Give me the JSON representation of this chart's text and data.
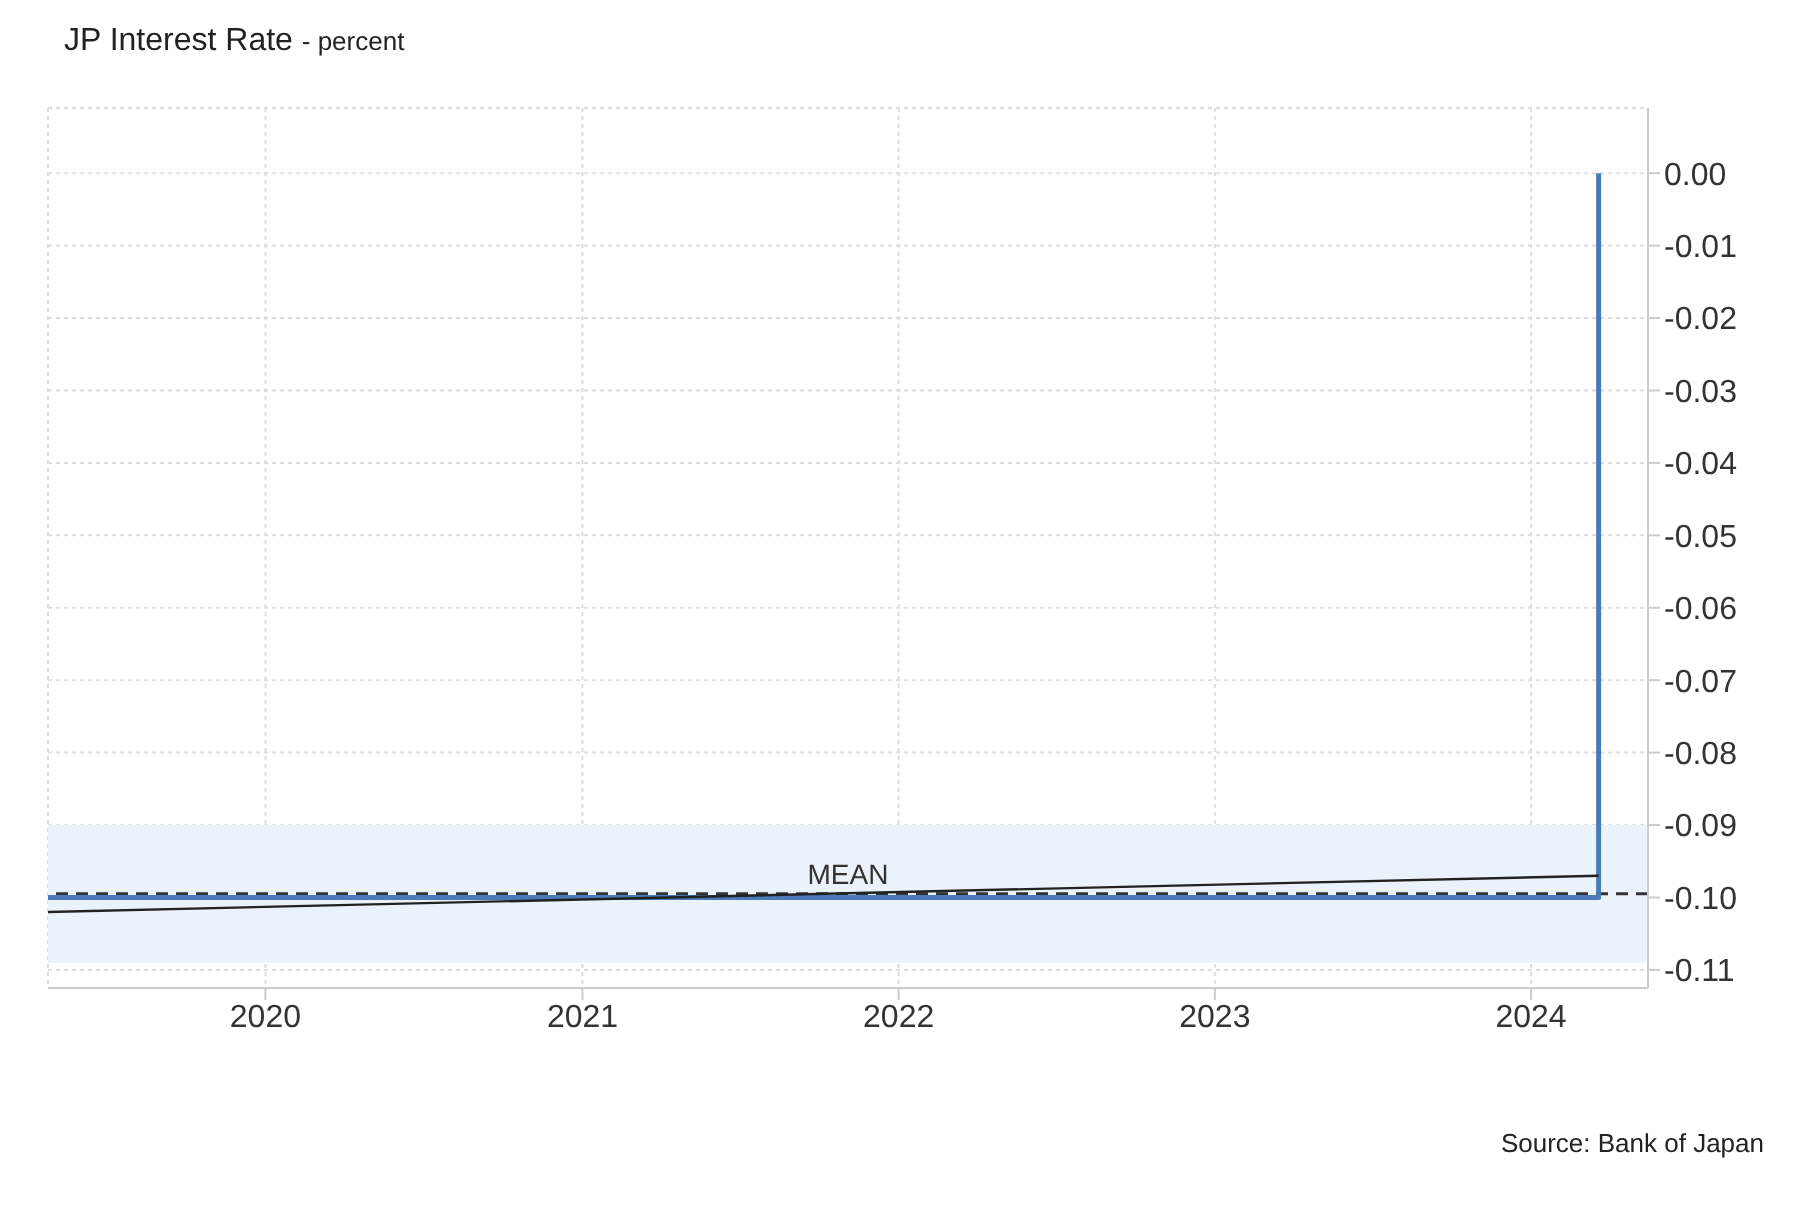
{
  "chart_data": {
    "type": "step",
    "title": "JP Interest Rate",
    "subtitle": "- percent",
    "annotations": [
      "Source: Bank of Japan"
    ],
    "series": [
      {
        "color": "#4a7ab8",
        "x": [
          "2019-04-25",
          "2024-03-19"
        ],
        "values": [
          -0.1,
          0
        ]
      },
      {
        "type": "line",
        "color": "#222222",
        "x": [
          "2019-04-25",
          "2024-03-19"
        ],
        "values": [
          -0.102,
          -0.097
        ]
      }
    ],
    "xlim": [
      "2019-04-25",
      "2024-05-15"
    ],
    "xticks": [
      "2020",
      "2021",
      "2022",
      "2023",
      "2024"
    ],
    "ylim": [
      -0.1125,
      0.009
    ],
    "yticks": [
      {
        "value": 0,
        "label": "0.00"
      },
      {
        "value": -0.01,
        "label": "-0.01"
      },
      {
        "value": -0.02,
        "label": "-0.02"
      },
      {
        "value": -0.03,
        "label": "-0.03"
      },
      {
        "value": -0.04,
        "label": "-0.04"
      },
      {
        "value": -0.05,
        "label": "-0.05"
      },
      {
        "value": -0.06,
        "label": "-0.06"
      },
      {
        "value": -0.07,
        "label": "-0.07"
      },
      {
        "value": -0.08,
        "label": "-0.08"
      },
      {
        "value": -0.09,
        "label": "-0.09"
      },
      {
        "value": -0.1,
        "label": "-0.10"
      },
      {
        "value": -0.11,
        "label": "-0.11"
      }
    ],
    "grid": true,
    "marker": "none",
    "ref_lines": [
      {
        "axis": "y",
        "value": -0.0995,
        "label": "MEAN",
        "color": "#333333",
        "line_style": "dashed"
      }
    ],
    "bands": [
      {
        "axis": "y",
        "from": -0.109,
        "to": -0.09,
        "color": "#eaf3fb"
      }
    ]
  }
}
